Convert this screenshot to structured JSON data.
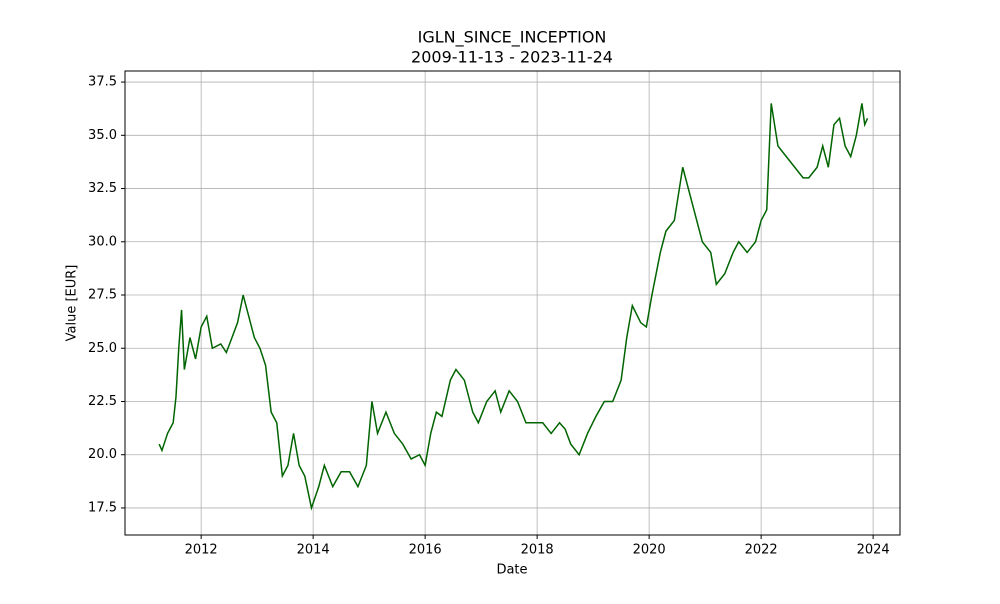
{
  "chart_data": {
    "type": "line",
    "title": "IGLN_SINCE_INCEPTION",
    "subtitle": "2009-11-13 - 2023-11-24",
    "x_label": "Date",
    "y_label": "Value [EUR]",
    "x": [
      2011.25,
      2011.3,
      2011.4,
      2011.5,
      2011.55,
      2011.6,
      2011.65,
      2011.7,
      2011.8,
      2011.9,
      2012.0,
      2012.1,
      2012.2,
      2012.35,
      2012.45,
      2012.55,
      2012.65,
      2012.75,
      2012.85,
      2012.95,
      2013.05,
      2013.15,
      2013.25,
      2013.35,
      2013.45,
      2013.55,
      2013.65,
      2013.75,
      2013.85,
      2013.97,
      2014.1,
      2014.2,
      2014.35,
      2014.5,
      2014.65,
      2014.8,
      2014.95,
      2015.05,
      2015.15,
      2015.3,
      2015.45,
      2015.6,
      2015.75,
      2015.9,
      2016.0,
      2016.1,
      2016.2,
      2016.3,
      2016.45,
      2016.55,
      2016.7,
      2016.85,
      2016.95,
      2017.1,
      2017.25,
      2017.35,
      2017.5,
      2017.65,
      2017.8,
      2017.95,
      2018.1,
      2018.25,
      2018.4,
      2018.5,
      2018.6,
      2018.75,
      2018.9,
      2019.05,
      2019.2,
      2019.35,
      2019.5,
      2019.6,
      2019.7,
      2019.85,
      2019.95,
      2020.05,
      2020.2,
      2020.3,
      2020.45,
      2020.6,
      2020.7,
      2020.8,
      2020.95,
      2021.1,
      2021.2,
      2021.35,
      2021.5,
      2021.6,
      2021.75,
      2021.9,
      2022.0,
      2022.1,
      2022.18,
      2022.3,
      2022.45,
      2022.6,
      2022.75,
      2022.85,
      2023.0,
      2023.1,
      2023.2,
      2023.3,
      2023.4,
      2023.5,
      2023.6,
      2023.7,
      2023.8,
      2023.85,
      2023.9
    ],
    "series": [
      {
        "name": "IGLN",
        "color": "#006400",
        "values": [
          20.5,
          20.2,
          21.0,
          21.5,
          22.7,
          25.0,
          26.8,
          24.0,
          25.5,
          24.5,
          26.0,
          26.5,
          25.0,
          25.2,
          24.8,
          25.5,
          26.2,
          27.5,
          26.5,
          25.5,
          25.0,
          24.2,
          22.0,
          21.5,
          19.0,
          19.5,
          21.0,
          19.5,
          19.0,
          17.5,
          18.5,
          19.5,
          18.5,
          19.2,
          19.2,
          18.5,
          19.5,
          22.5,
          21.0,
          22.0,
          21.0,
          20.5,
          19.8,
          20.0,
          19.5,
          21.0,
          22.0,
          21.8,
          23.5,
          24.0,
          23.5,
          22.0,
          21.5,
          22.5,
          23.0,
          22.0,
          23.0,
          22.5,
          21.5,
          21.5,
          21.5,
          21.0,
          21.5,
          21.2,
          20.5,
          20.0,
          21.0,
          21.8,
          22.5,
          22.5,
          23.5,
          25.5,
          27.0,
          26.2,
          26.0,
          27.5,
          29.5,
          30.5,
          31.0,
          33.5,
          32.5,
          31.5,
          30.0,
          29.5,
          28.0,
          28.5,
          29.5,
          30.0,
          29.5,
          30.0,
          31.0,
          31.5,
          36.5,
          34.5,
          34.0,
          33.5,
          33.0,
          33.0,
          33.5,
          34.5,
          33.5,
          35.5,
          35.8,
          34.5,
          34.0,
          35.0,
          36.5,
          35.5,
          35.8
        ]
      }
    ],
    "xlim": [
      2010.64,
      2024.48
    ],
    "xticks": [
      2012,
      2014,
      2016,
      2018,
      2020,
      2022,
      2024
    ],
    "ylim": [
      16.23,
      38.02
    ],
    "yticks": [
      17.5,
      {
        "value": 20,
        "label": "20.0"
      },
      22.5,
      {
        "value": 25,
        "label": "25.0"
      },
      27.5,
      {
        "value": 30,
        "label": "30.0"
      },
      32.5,
      {
        "value": 35,
        "label": "35.0"
      },
      37.5
    ],
    "grid": true
  }
}
